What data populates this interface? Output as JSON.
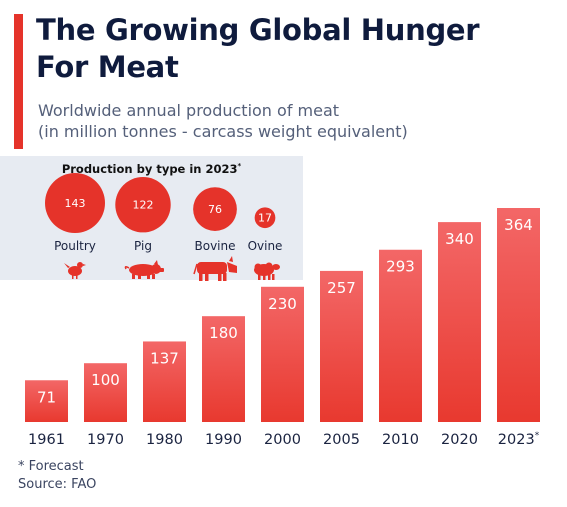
{
  "header": {
    "title_line1": "The Growing Global Hunger",
    "title_line2": "For Meat",
    "subtitle_line1": "Worldwide annual production of meat",
    "subtitle_line2": "(in million tonnes - carcass weight equivalent)"
  },
  "inset": {
    "title": "Production by type in 2023",
    "title_mark": "*",
    "types": [
      {
        "name": "Poultry",
        "value": 143,
        "icon": "chicken-icon"
      },
      {
        "name": "Pig",
        "value": 122,
        "icon": "pig-icon"
      },
      {
        "name": "Bovine",
        "value": 76,
        "icon": "cow-icon"
      },
      {
        "name": "Ovine",
        "value": 17,
        "icon": "sheep-icon"
      }
    ]
  },
  "chart_data": {
    "type": "bar",
    "categories": [
      "1961",
      "1970",
      "1980",
      "1990",
      "2000",
      "2005",
      "2010",
      "2020",
      "2023"
    ],
    "category_marks": [
      "",
      "",
      "",
      "",
      "",
      "",
      "",
      "",
      "*"
    ],
    "values": [
      71,
      100,
      137,
      180,
      230,
      257,
      293,
      340,
      364
    ],
    "title": "",
    "xlabel": "",
    "ylabel": "",
    "ylim": [
      0,
      364
    ],
    "grid": false,
    "colors": {
      "bar_top": "#f36767",
      "bar_bottom": "#e8392f",
      "accent": "#e5332a"
    }
  },
  "footer": {
    "note": "* Forecast",
    "source": "Source: FAO"
  }
}
